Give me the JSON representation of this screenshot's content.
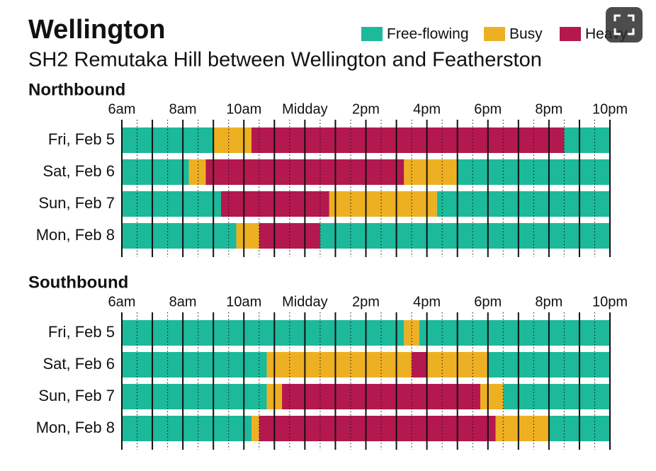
{
  "chart_data": {
    "type": "timeline",
    "title": "Wellington",
    "subtitle": "SH2 Remutaka Hill between Wellington and Featherston",
    "legend": [
      {
        "name": "Free-flowing",
        "color": "#1cb99a"
      },
      {
        "name": "Busy",
        "color": "#eeb023"
      },
      {
        "name": "Heavy",
        "color": "#b3194e"
      }
    ],
    "xlim": [
      6,
      22
    ],
    "xticks": [
      {
        "value": 6,
        "label": "6am"
      },
      {
        "value": 8,
        "label": "8am"
      },
      {
        "value": 10,
        "label": "10am"
      },
      {
        "value": 12,
        "label": "Midday"
      },
      {
        "value": 14,
        "label": "2pm"
      },
      {
        "value": 16,
        "label": "4pm"
      },
      {
        "value": 18,
        "label": "6pm"
      },
      {
        "value": 20,
        "label": "8pm"
      },
      {
        "value": 22,
        "label": "10pm"
      }
    ],
    "panels": [
      {
        "title": "Northbound",
        "rows": [
          {
            "label": "Fri, Feb 5",
            "segments": [
              {
                "status": 0,
                "start": 6,
                "end": 9
              },
              {
                "status": 1,
                "start": 9,
                "end": 10.25
              },
              {
                "status": 2,
                "start": 10.25,
                "end": 20.5
              },
              {
                "status": 0,
                "start": 20.5,
                "end": 22
              }
            ]
          },
          {
            "label": "Sat, Feb 6",
            "segments": [
              {
                "status": 0,
                "start": 6,
                "end": 8.2
              },
              {
                "status": 1,
                "start": 8.2,
                "end": 8.75
              },
              {
                "status": 2,
                "start": 8.75,
                "end": 15.25
              },
              {
                "status": 1,
                "start": 15.25,
                "end": 17
              },
              {
                "status": 0,
                "start": 17,
                "end": 22
              }
            ]
          },
          {
            "label": "Sun, Feb 7",
            "segments": [
              {
                "status": 0,
                "start": 6,
                "end": 9.25
              },
              {
                "status": 2,
                "start": 9.25,
                "end": 12.8
              },
              {
                "status": 1,
                "start": 12.8,
                "end": 16.33
              },
              {
                "status": 0,
                "start": 16.33,
                "end": 22
              }
            ]
          },
          {
            "label": "Mon, Feb 8",
            "segments": [
              {
                "status": 0,
                "start": 6,
                "end": 9.75
              },
              {
                "status": 1,
                "start": 9.75,
                "end": 10.5
              },
              {
                "status": 2,
                "start": 10.5,
                "end": 12.5
              },
              {
                "status": 0,
                "start": 12.5,
                "end": 22
              }
            ]
          }
        ]
      },
      {
        "title": "Southbound",
        "rows": [
          {
            "label": "Fri, Feb 5",
            "segments": [
              {
                "status": 0,
                "start": 6,
                "end": 15.25
              },
              {
                "status": 1,
                "start": 15.25,
                "end": 15.75
              },
              {
                "status": 0,
                "start": 15.75,
                "end": 22
              }
            ]
          },
          {
            "label": "Sat, Feb 6",
            "segments": [
              {
                "status": 0,
                "start": 6,
                "end": 10.75
              },
              {
                "status": 1,
                "start": 10.75,
                "end": 15.5
              },
              {
                "status": 2,
                "start": 15.5,
                "end": 16
              },
              {
                "status": 1,
                "start": 16,
                "end": 18
              },
              {
                "status": 0,
                "start": 18,
                "end": 22
              }
            ]
          },
          {
            "label": "Sun, Feb 7",
            "segments": [
              {
                "status": 0,
                "start": 6,
                "end": 10.75
              },
              {
                "status": 1,
                "start": 10.75,
                "end": 11.25
              },
              {
                "status": 2,
                "start": 11.25,
                "end": 17.75
              },
              {
                "status": 1,
                "start": 17.75,
                "end": 18.5
              },
              {
                "status": 0,
                "start": 18.5,
                "end": 22
              }
            ]
          },
          {
            "label": "Mon, Feb 8",
            "segments": [
              {
                "status": 0,
                "start": 6,
                "end": 10.25
              },
              {
                "status": 1,
                "start": 10.25,
                "end": 10.5
              },
              {
                "status": 2,
                "start": 10.5,
                "end": 18.25
              },
              {
                "status": 1,
                "start": 18.25,
                "end": 20
              },
              {
                "status": 0,
                "start": 20,
                "end": 22
              }
            ]
          }
        ]
      }
    ]
  }
}
